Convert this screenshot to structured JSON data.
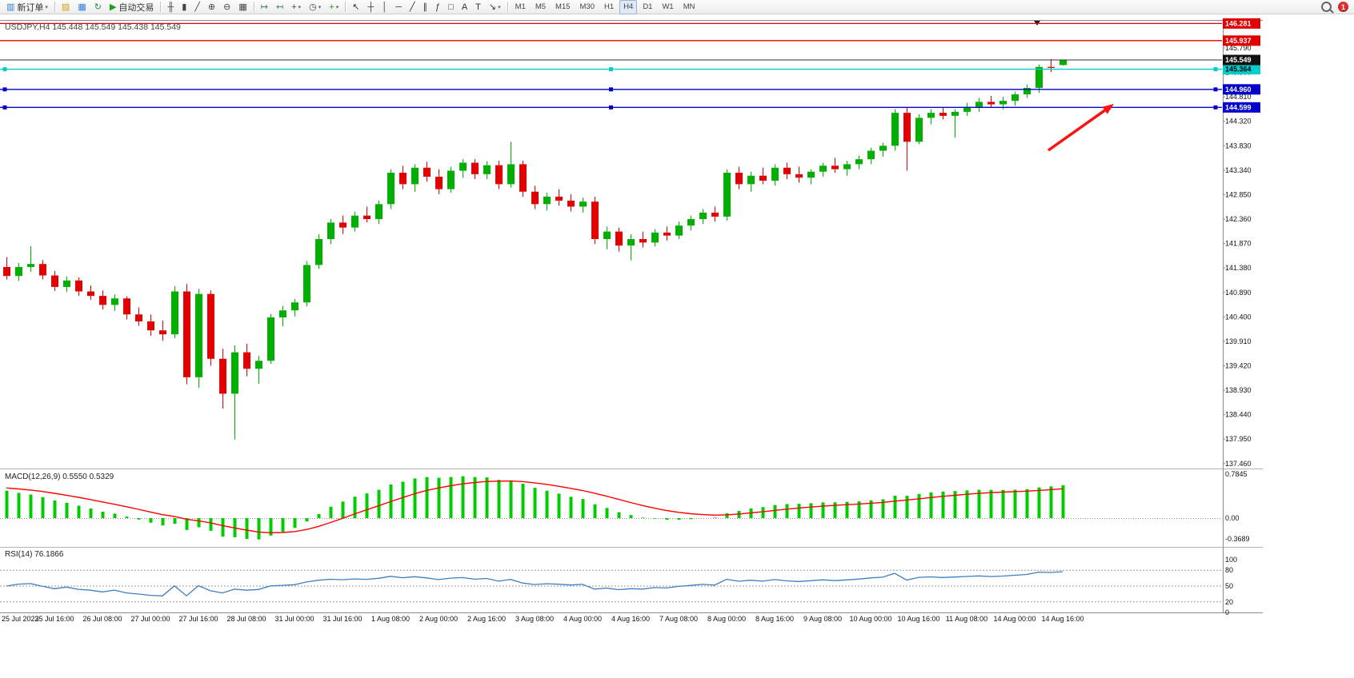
{
  "toolbar": {
    "new_order_label": "新订单",
    "autotrade_label": "自动交易",
    "notification_count": "1",
    "items": [
      {
        "t": "btn",
        "name": "new-order-button",
        "glyph": "▥",
        "color": "#2f7ed8",
        "label": "新订单",
        "caret": true
      },
      {
        "t": "sep"
      },
      {
        "t": "btn",
        "name": "metaeditor-button",
        "glyph": "▨",
        "color": "#d4a017"
      },
      {
        "t": "btn",
        "name": "market-watch-button",
        "glyph": "▦",
        "color": "#2f7ed8"
      },
      {
        "t": "btn",
        "name": "refresh-button",
        "glyph": "↻",
        "color": "#2e8b57"
      },
      {
        "t": "btn",
        "name": "autotrading-button",
        "glyph": "▶",
        "color": "#18a018",
        "label": "自动交易"
      },
      {
        "t": "sep"
      },
      {
        "t": "btn",
        "name": "bar-chart-button",
        "glyph": "╫",
        "color": "#444"
      },
      {
        "t": "btn",
        "name": "candlestick-chart-button",
        "glyph": "▮",
        "color": "#444"
      },
      {
        "t": "btn",
        "name": "line-chart-button",
        "glyph": "╱",
        "color": "#444"
      },
      {
        "t": "btn",
        "name": "zoom-in-button",
        "glyph": "⊕",
        "color": "#444"
      },
      {
        "t": "btn",
        "name": "zoom-out-button",
        "glyph": "⊖",
        "color": "#444"
      },
      {
        "t": "btn",
        "name": "tile-windows-button",
        "glyph": "▦",
        "color": "#444"
      },
      {
        "t": "sep"
      },
      {
        "t": "btn",
        "name": "auto-scroll-button",
        "glyph": "↦",
        "color": "#2e8b57"
      },
      {
        "t": "btn",
        "name": "chart-shift-button",
        "glyph": "↤",
        "color": "#2e8b57"
      },
      {
        "t": "btn",
        "name": "new-chart-button",
        "glyph": "+",
        "color": "#444",
        "caret": true
      },
      {
        "t": "btn",
        "name": "period-button",
        "glyph": "◷",
        "color": "#444",
        "caret": true
      },
      {
        "t": "btn",
        "name": "indicators-button",
        "glyph": "+",
        "color": "#18a018",
        "caret": true
      },
      {
        "t": "sep"
      },
      {
        "t": "btn",
        "name": "cursor-button",
        "glyph": "↖",
        "color": "#333"
      },
      {
        "t": "btn",
        "name": "crosshair-button",
        "glyph": "┼",
        "color": "#333"
      },
      {
        "t": "btn",
        "name": "vertical-line-button",
        "glyph": "│",
        "color": "#333"
      },
      {
        "t": "btn",
        "name": "horizontal-line-button",
        "glyph": "─",
        "color": "#333"
      },
      {
        "t": "btn",
        "name": "trendline-button",
        "glyph": "╱",
        "color": "#333"
      },
      {
        "t": "btn",
        "name": "channel-button",
        "glyph": "∥",
        "color": "#333"
      },
      {
        "t": "btn",
        "name": "fibonacci-button",
        "glyph": "ƒ",
        "color": "#333"
      },
      {
        "t": "btn",
        "name": "shapes-button",
        "glyph": "□",
        "color": "#333"
      },
      {
        "t": "btn",
        "name": "text-button",
        "glyph": "A",
        "color": "#333"
      },
      {
        "t": "btn",
        "name": "text-label-button",
        "glyph": "T",
        "color": "#333"
      },
      {
        "t": "btn",
        "name": "arrows-button",
        "glyph": "↘",
        "color": "#333",
        "caret": true
      },
      {
        "t": "sep"
      },
      {
        "t": "btn",
        "name": "timeframe-m1-button",
        "label": "M1",
        "cls": "tf"
      },
      {
        "t": "btn",
        "name": "timeframe-m5-button",
        "label": "M5",
        "cls": "tf"
      },
      {
        "t": "btn",
        "name": "timeframe-m15-button",
        "label": "M15",
        "cls": "tf"
      },
      {
        "t": "btn",
        "name": "timeframe-m30-button",
        "label": "M30",
        "cls": "tf"
      },
      {
        "t": "btn",
        "name": "timeframe-h1-button",
        "label": "H1",
        "cls": "tf"
      },
      {
        "t": "btn",
        "name": "timeframe-h4-button",
        "label": "H4",
        "cls": "tf",
        "active": true
      },
      {
        "t": "btn",
        "name": "timeframe-d1-button",
        "label": "D1",
        "cls": "tf"
      },
      {
        "t": "btn",
        "name": "timeframe-w1-button",
        "label": "W1",
        "cls": "tf"
      },
      {
        "t": "btn",
        "name": "timeframe-mn-button",
        "label": "MN",
        "cls": "tf"
      },
      {
        "t": "spacer"
      },
      {
        "t": "search"
      },
      {
        "t": "notif"
      }
    ]
  },
  "chart": {
    "title": "USDJPY,H4 145.448 145.549 145.438 145.549",
    "symbol": "USDJPY",
    "period": "H4",
    "ohlc_display": {
      "open": "145.448",
      "high": "145.549",
      "low": "145.438",
      "close": "145.549"
    }
  },
  "chart_data": {
    "type": "candlestick",
    "symbol": "USDJPY",
    "timeframe": "H4",
    "up_color": "#00AF00",
    "down_color": "#E30000",
    "candles_per_label": 4,
    "x_labels": [
      "25 Jul 2023",
      "25 Jul 16:00",
      "26 Jul 08:00",
      "27 Jul 00:00",
      "27 Jul 16:00",
      "28 Jul 08:00",
      "31 Jul 00:00",
      "31 Jul 16:00",
      "1 Aug 08:00",
      "2 Aug 00:00",
      "2 Aug 16:00",
      "3 Aug 08:00",
      "4 Aug 00:00",
      "4 Aug 16:00",
      "7 Aug 08:00",
      "8 Aug 00:00",
      "8 Aug 16:00",
      "9 Aug 08:00",
      "10 Aug 00:00",
      "10 Aug 16:00",
      "11 Aug 08:00",
      "14 Aug 00:00",
      "14 Aug 16:00"
    ],
    "y_axis": {
      "tick_start": 145.79,
      "tick_step": 0.49,
      "tick_count": 18,
      "min": 137.44,
      "max": 146.3
    },
    "candles": [
      [
        141.4,
        141.6,
        141.15,
        141.22
      ],
      [
        141.22,
        141.48,
        141.12,
        141.4
      ],
      [
        141.4,
        141.82,
        141.3,
        141.46
      ],
      [
        141.46,
        141.54,
        141.15,
        141.23
      ],
      [
        141.23,
        141.32,
        140.92,
        141.0
      ],
      [
        141.0,
        141.21,
        140.9,
        141.13
      ],
      [
        141.13,
        141.19,
        140.82,
        140.91
      ],
      [
        140.91,
        141.03,
        140.74,
        140.82
      ],
      [
        140.82,
        140.93,
        140.55,
        140.64
      ],
      [
        140.64,
        140.85,
        140.52,
        140.77
      ],
      [
        140.77,
        140.81,
        140.35,
        140.45
      ],
      [
        140.45,
        140.59,
        140.22,
        140.31
      ],
      [
        140.31,
        140.45,
        140.02,
        140.13
      ],
      [
        140.13,
        140.33,
        139.92,
        140.05
      ],
      [
        140.05,
        141.02,
        139.97,
        140.91
      ],
      [
        140.91,
        141.06,
        139.05,
        139.19
      ],
      [
        139.19,
        140.96,
        138.98,
        140.86
      ],
      [
        140.86,
        140.93,
        139.42,
        139.56
      ],
      [
        139.56,
        139.76,
        138.56,
        138.86
      ],
      [
        138.86,
        139.83,
        137.94,
        139.69
      ],
      [
        139.69,
        139.86,
        139.21,
        139.36
      ],
      [
        139.36,
        139.62,
        139.06,
        139.52
      ],
      [
        139.52,
        140.46,
        139.46,
        140.39
      ],
      [
        140.39,
        140.62,
        140.21,
        140.53
      ],
      [
        140.53,
        140.76,
        140.41,
        140.69
      ],
      [
        140.69,
        141.52,
        140.61,
        141.44
      ],
      [
        141.44,
        142.06,
        141.36,
        141.96
      ],
      [
        141.96,
        142.36,
        141.86,
        142.29
      ],
      [
        142.29,
        142.43,
        142.06,
        142.19
      ],
      [
        142.19,
        142.51,
        142.11,
        142.43
      ],
      [
        142.43,
        142.61,
        142.29,
        142.36
      ],
      [
        142.36,
        142.73,
        142.26,
        142.66
      ],
      [
        142.66,
        143.36,
        142.56,
        143.29
      ],
      [
        143.29,
        143.43,
        142.96,
        143.06
      ],
      [
        143.06,
        143.46,
        142.91,
        143.39
      ],
      [
        143.39,
        143.51,
        143.11,
        143.21
      ],
      [
        143.21,
        143.36,
        142.86,
        142.96
      ],
      [
        142.96,
        143.41,
        142.89,
        143.33
      ],
      [
        143.33,
        143.56,
        143.19,
        143.49
      ],
      [
        143.49,
        143.56,
        143.16,
        143.26
      ],
      [
        143.26,
        143.52,
        143.16,
        143.44
      ],
      [
        143.44,
        143.53,
        142.96,
        143.06
      ],
      [
        143.06,
        143.91,
        142.99,
        143.46
      ],
      [
        143.46,
        143.53,
        142.81,
        142.91
      ],
      [
        142.91,
        143.03,
        142.56,
        142.66
      ],
      [
        142.66,
        142.89,
        142.53,
        142.81
      ],
      [
        142.81,
        142.96,
        142.63,
        142.73
      ],
      [
        142.73,
        142.86,
        142.51,
        142.61
      ],
      [
        142.61,
        142.79,
        142.49,
        142.71
      ],
      [
        142.71,
        142.81,
        141.86,
        141.96
      ],
      [
        141.96,
        142.21,
        141.76,
        142.11
      ],
      [
        142.11,
        142.19,
        141.71,
        141.83
      ],
      [
        141.83,
        142.06,
        141.53,
        141.96
      ],
      [
        141.96,
        142.11,
        141.79,
        141.89
      ],
      [
        141.89,
        142.16,
        141.81,
        142.09
      ],
      [
        142.09,
        142.21,
        141.93,
        142.03
      ],
      [
        142.03,
        142.31,
        141.96,
        142.23
      ],
      [
        142.23,
        142.43,
        142.13,
        142.36
      ],
      [
        142.36,
        142.56,
        142.26,
        142.49
      ],
      [
        142.49,
        142.61,
        142.31,
        142.41
      ],
      [
        142.41,
        143.36,
        142.33,
        143.29
      ],
      [
        143.29,
        143.41,
        142.96,
        143.06
      ],
      [
        143.06,
        143.31,
        142.91,
        143.23
      ],
      [
        143.23,
        143.39,
        143.06,
        143.13
      ],
      [
        143.13,
        143.46,
        143.03,
        143.39
      ],
      [
        143.39,
        143.49,
        143.16,
        143.26
      ],
      [
        143.26,
        143.41,
        143.09,
        143.19
      ],
      [
        143.19,
        143.36,
        143.06,
        143.31
      ],
      [
        143.31,
        143.49,
        143.21,
        143.43
      ],
      [
        143.43,
        143.59,
        143.29,
        143.36
      ],
      [
        143.36,
        143.53,
        143.23,
        143.46
      ],
      [
        143.46,
        143.63,
        143.36,
        143.56
      ],
      [
        143.56,
        143.79,
        143.46,
        143.73
      ],
      [
        143.73,
        143.89,
        143.61,
        143.83
      ],
      [
        143.83,
        144.56,
        143.73,
        144.49
      ],
      [
        144.49,
        144.61,
        143.33,
        143.91
      ],
      [
        143.91,
        144.46,
        143.86,
        144.39
      ],
      [
        144.39,
        144.56,
        144.26,
        144.49
      ],
      [
        144.49,
        144.61,
        144.36,
        144.43
      ],
      [
        144.43,
        144.56,
        143.99,
        144.51
      ],
      [
        144.51,
        144.69,
        144.43,
        144.61
      ],
      [
        144.61,
        144.79,
        144.51,
        144.71
      ],
      [
        144.71,
        144.83,
        144.59,
        144.66
      ],
      [
        144.66,
        144.81,
        144.56,
        144.73
      ],
      [
        144.73,
        144.91,
        144.63,
        144.86
      ],
      [
        144.86,
        145.06,
        144.79,
        144.99
      ],
      [
        144.99,
        145.46,
        144.89,
        145.41
      ],
      [
        145.41,
        145.57,
        145.31,
        145.39
      ],
      [
        145.448,
        145.549,
        145.438,
        145.549
      ]
    ],
    "levels": [
      {
        "price": 146.281,
        "label": "146.281",
        "color": "#E00000",
        "text_color": "#ffffff",
        "handles": false
      },
      {
        "price": 145.937,
        "label": "145.937",
        "color": "#E00000",
        "text_color": "#ffffff",
        "handles": false
      },
      {
        "price": 145.364,
        "label": "145.364",
        "color": "#00CDCD",
        "text_color": "#000000",
        "handles": true
      },
      {
        "price": 144.96,
        "label": "144.960",
        "color": "#0000CD",
        "text_color": "#ffffff",
        "handles": true
      },
      {
        "price": 144.599,
        "label": "144.599",
        "color": "#0000CD",
        "text_color": "#ffffff",
        "handles": true
      }
    ],
    "current_price": {
      "value": 145.549,
      "label": "145.549",
      "badge_bg": "#111111",
      "badge_text": "#ffffff"
    },
    "indicators": {
      "macd": {
        "label": "MACD(12,26,9)",
        "values": "0.5550 0.5329",
        "params": [
          12,
          26,
          9
        ],
        "axis_ticks": [
          "0.7845",
          "0.00",
          "-0.3689"
        ],
        "histogram_color": "#00CC00",
        "signal_color": "#FF0000"
      },
      "rsi": {
        "label": "RSI(14)",
        "value": "76.1866",
        "period": 14,
        "axis_ticks": [
          "100",
          "80",
          "50",
          "20",
          "0"
        ],
        "levels": [
          80,
          50,
          20
        ],
        "line_color": "#3E7EC1"
      }
    },
    "annotation_arrow": {
      "from": [
        1310,
        188
      ],
      "to": [
        1392,
        130
      ],
      "color": "#FF1010"
    }
  }
}
